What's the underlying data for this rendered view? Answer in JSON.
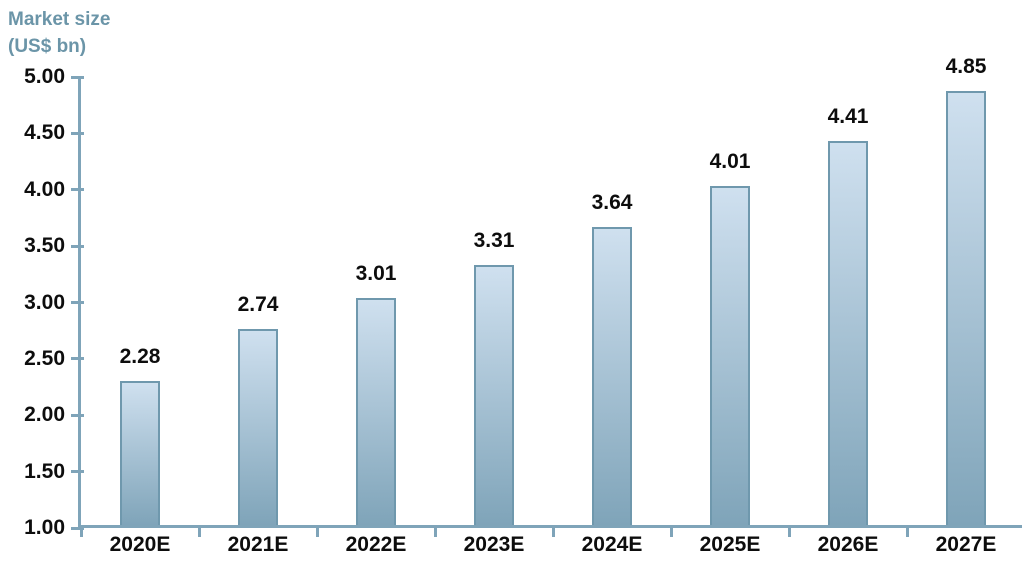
{
  "chart": {
    "title_line1": "Market size",
    "title_line2": "(US$ bn)"
  },
  "chart_data": {
    "type": "bar",
    "title": "Market size (US$ bn)",
    "categories": [
      "2020E",
      "2021E",
      "2022E",
      "2023E",
      "2024E",
      "2025E",
      "2026E",
      "2027E"
    ],
    "values": [
      2.28,
      2.74,
      3.01,
      3.31,
      3.64,
      4.01,
      4.41,
      4.85
    ],
    "value_labels": [
      "2.28",
      "2.74",
      "3.01",
      "3.31",
      "3.64",
      "4.01",
      "4.41",
      "4.85"
    ],
    "xlabel": "",
    "ylabel": "Market size (US$ bn)",
    "ylim": [
      1.0,
      5.0
    ],
    "yticks": [
      5.0,
      4.5,
      4.0,
      3.5,
      3.0,
      2.5,
      2.0,
      1.5,
      1.0
    ],
    "ytick_labels": [
      "5.00",
      "4.50",
      "4.00",
      "3.50",
      "3.00",
      "2.50",
      "2.00",
      "1.50",
      "1.00"
    ],
    "grid": false,
    "legend": false,
    "colors": {
      "axis": "#7fa4b9",
      "title": "#6b95a8",
      "bar_gradient_top": "#cfe0ef",
      "bar_gradient_bottom": "#7fa4b9",
      "bar_border": "#6f98ad",
      "text": "#0d0d0d"
    }
  }
}
